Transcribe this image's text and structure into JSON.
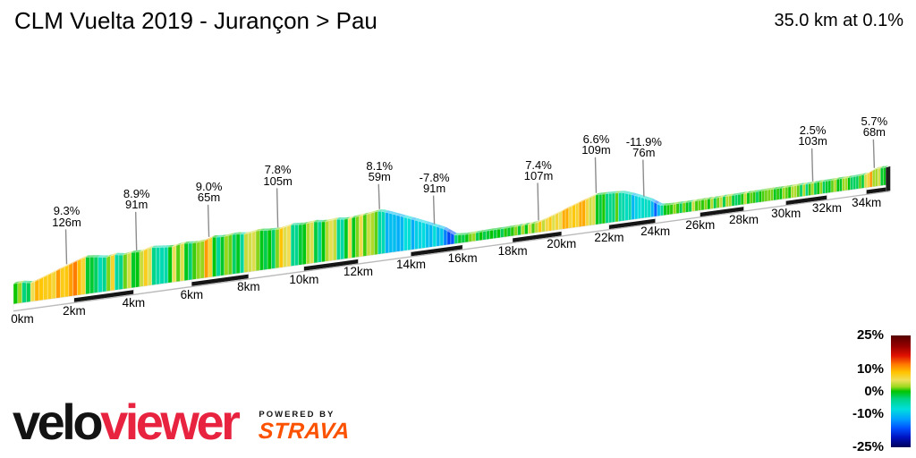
{
  "header": {
    "title": "CLM Vuelta 2019 - Jurançon > Pau",
    "summary": "35.0 km at 0.1%"
  },
  "chart_data": {
    "type": "area",
    "title": "CLM Vuelta 2019 - Jurançon > Pau",
    "subtitle": "35.0 km at 0.1%",
    "total_distance_km": 35.0,
    "average_gradient_pct": 0.1,
    "x_unit": "km",
    "x_tick_interval_km": 2,
    "x_ticks": [
      "0km",
      "2km",
      "4km",
      "6km",
      "8km",
      "10km",
      "12km",
      "14km",
      "16km",
      "18km",
      "20km",
      "22km",
      "24km",
      "26km",
      "28km",
      "30km",
      "32km",
      "34km"
    ],
    "annotations": [
      {
        "km": 1.75,
        "gradient": "9.3%",
        "label": "126m"
      },
      {
        "km": 4.1,
        "gradient": "8.9%",
        "label": "91m"
      },
      {
        "km": 6.6,
        "gradient": "9.0%",
        "label": "65m"
      },
      {
        "km": 9.05,
        "gradient": "7.8%",
        "label": "105m"
      },
      {
        "km": 12.8,
        "gradient": "8.1%",
        "label": "59m"
      },
      {
        "km": 14.9,
        "gradient": "-7.8%",
        "label": "91m"
      },
      {
        "km": 19.05,
        "gradient": "7.4%",
        "label": "107m"
      },
      {
        "km": 21.45,
        "gradient": "6.6%",
        "label": "109m"
      },
      {
        "km": 23.5,
        "gradient": "-11.9%",
        "label": "76m"
      },
      {
        "km": 31.3,
        "gradient": "2.5%",
        "label": "103m"
      },
      {
        "km": 34.4,
        "gradient": "5.7%",
        "label": "68m"
      }
    ],
    "elevation_profile": {
      "unit": "m",
      "points": [
        [
          0,
          197
        ],
        [
          0.25,
          198
        ],
        [
          0.6,
          193
        ],
        [
          1,
          204
        ],
        [
          1.45,
          217
        ],
        [
          1.95,
          230
        ],
        [
          2.35,
          241
        ],
        [
          2.7,
          238
        ],
        [
          3.05,
          233
        ],
        [
          3.35,
          237
        ],
        [
          3.65,
          233
        ],
        [
          3.95,
          237
        ],
        [
          4.25,
          235
        ],
        [
          4.55,
          243
        ],
        [
          4.9,
          240
        ],
        [
          5.3,
          237
        ],
        [
          5.7,
          242
        ],
        [
          6.1,
          239
        ],
        [
          6.45,
          241
        ],
        [
          6.7,
          248
        ],
        [
          7.1,
          245
        ],
        [
          7.5,
          248
        ],
        [
          7.9,
          244
        ],
        [
          8.3,
          249
        ],
        [
          8.7,
          246
        ],
        [
          9.1,
          245
        ],
        [
          9.55,
          252
        ],
        [
          9.95,
          249
        ],
        [
          10.35,
          252
        ],
        [
          10.75,
          248
        ],
        [
          11.15,
          251
        ],
        [
          11.55,
          247
        ],
        [
          11.95,
          250
        ],
        [
          12.35,
          253
        ],
        [
          12.8,
          257
        ],
        [
          13.2,
          247
        ],
        [
          13.7,
          233
        ],
        [
          14.2,
          219
        ],
        [
          14.75,
          203
        ],
        [
          15.25,
          188
        ],
        [
          15.7,
          167
        ],
        [
          16.1,
          165
        ],
        [
          16.6,
          166
        ],
        [
          17.1,
          167
        ],
        [
          17.6,
          167
        ],
        [
          18.1,
          168
        ],
        [
          18.6,
          169
        ],
        [
          19.05,
          171
        ],
        [
          19.45,
          179
        ],
        [
          19.85,
          188
        ],
        [
          20.25,
          197
        ],
        [
          20.65,
          206
        ],
        [
          21.05,
          214
        ],
        [
          21.45,
          222
        ],
        [
          21.85,
          221
        ],
        [
          22.25,
          220
        ],
        [
          22.6,
          218
        ],
        [
          23,
          209
        ],
        [
          23.4,
          199
        ],
        [
          23.8,
          188
        ],
        [
          24.2,
          172
        ],
        [
          24.6,
          170
        ],
        [
          25.1,
          170
        ],
        [
          25.6,
          170
        ],
        [
          26.1,
          171
        ],
        [
          26.6,
          171
        ],
        [
          27.1,
          172
        ],
        [
          27.6,
          172
        ],
        [
          28.1,
          173
        ],
        [
          28.6,
          173
        ],
        [
          29.1,
          174
        ],
        [
          29.6,
          174
        ],
        [
          30.1,
          174
        ],
        [
          30.6,
          175
        ],
        [
          31.1,
          175
        ],
        [
          31.6,
          176
        ],
        [
          32.1,
          176
        ],
        [
          32.6,
          177
        ],
        [
          33.1,
          177
        ],
        [
          33.6,
          178
        ],
        [
          34.05,
          180
        ],
        [
          34.35,
          188
        ],
        [
          34.65,
          191
        ],
        [
          34.85,
          190
        ],
        [
          35,
          190
        ]
      ]
    },
    "legend": {
      "position": "right",
      "ticks": [
        "25%",
        "10%",
        "0%",
        "-10%",
        "-25%"
      ],
      "values": [
        25,
        10,
        0,
        -10,
        -25
      ],
      "colormap_top_to_bottom": [
        "#550000",
        "#990000",
        "#e01000",
        "#ff7a00",
        "#ffc400",
        "#eee05a",
        "#9bd81e",
        "#00c400",
        "#00d487",
        "#00dede",
        "#009fff",
        "#0050ff",
        "#0013c2",
        "#000058"
      ]
    }
  },
  "footer": {
    "brand_black": "velo",
    "brand_red": "viewer",
    "powered_by": "POWERED BY",
    "strava": "STRAVA"
  },
  "colors": {
    "brand_red": "#e8233f",
    "strava_orange": "#fc5200",
    "annotation_line": "#8c8c8c",
    "axis_strip_black": "#151515",
    "axis_strip_white": "#ffffff"
  }
}
